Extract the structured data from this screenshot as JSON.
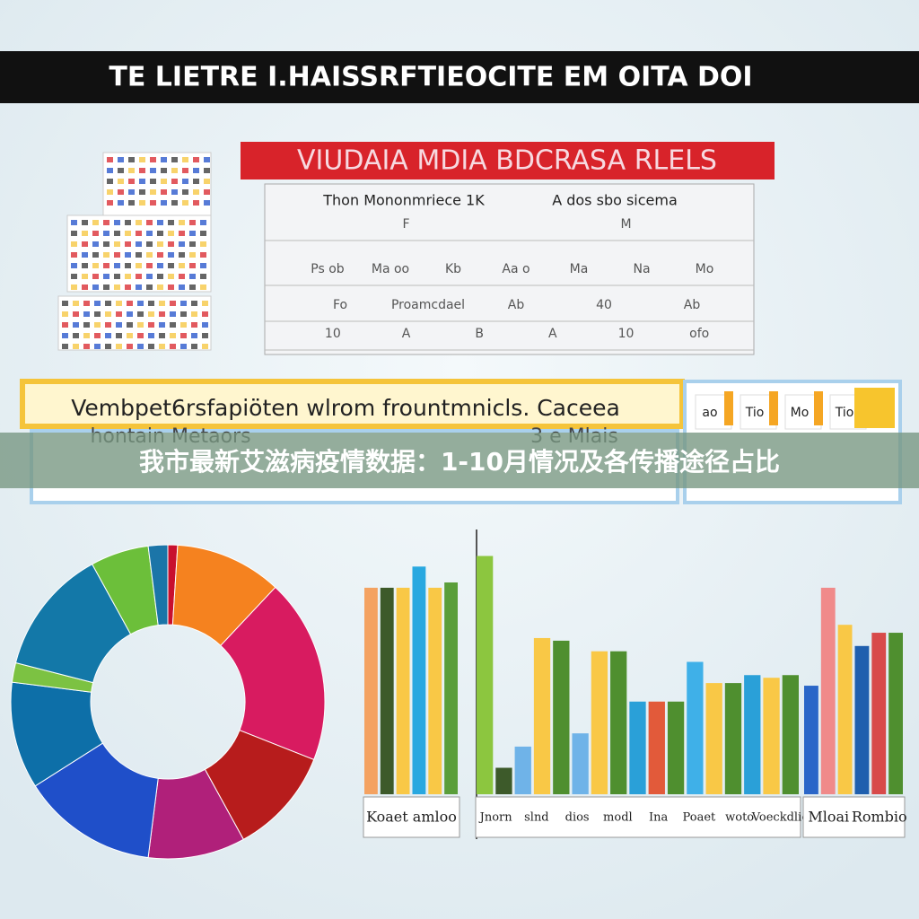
{
  "header": {
    "title": "TE LIETRE I.HAISSRFTIEOCITE EM OITA DOI"
  },
  "table": {
    "banner": "VIUDAIA MDIA BDCRASA RLELS",
    "headers": [
      "Thon Mononmriece 1K",
      "A dos sbo sicema"
    ],
    "rows": [
      [
        "F",
        "M"
      ],
      [
        "Ps ob",
        "Ma oo",
        "Kb",
        "Aa o",
        "Ma",
        "Na",
        "Mo"
      ],
      [
        "Fo",
        "Proamcdael",
        "Ab",
        "40",
        "Ab"
      ],
      [
        "10",
        "A",
        "B",
        "A",
        "10",
        "ofo"
      ]
    ]
  },
  "notice": {
    "text": "Vembpet6rsfapiöten wlrom frountmnicls. Caceea",
    "subtext": "hontain Metaors",
    "side": "3 e Mlais",
    "boxes": [
      "ao",
      "Tio",
      "Mo",
      "Tio"
    ]
  },
  "caption": "我市最新艾滋病疫情数据：1-10月情况及各传播途径占比",
  "donut": {
    "values": [
      1,
      11,
      19,
      11,
      10,
      14,
      11,
      2,
      13,
      6,
      2
    ],
    "colors": [
      "#c8102e",
      "#f5821f",
      "#d81b60",
      "#b71c1c",
      "#b0207a",
      "#1f4fc9",
      "#0d6fa8",
      "#7cc242",
      "#1378a8",
      "#6cbf3a",
      "#1b75a8"
    ]
  },
  "bars": {
    "groups": [
      {
        "values": [
          78,
          78,
          78,
          86,
          78,
          80
        ],
        "colors": [
          "#f4a261",
          "#3d5a2a",
          "#f9c846",
          "#29a8e0",
          "#f9c846",
          "#5a9e3a"
        ]
      },
      {
        "values": [
          90,
          10,
          18,
          59,
          58,
          23,
          54,
          54,
          35,
          35,
          35,
          50,
          42,
          42,
          45,
          44,
          45
        ],
        "colors": [
          "#8cc63f",
          "#3d5a2a",
          "#6fb3e8",
          "#f9c846",
          "#4f8f2f",
          "#6fb3e8",
          "#f9c846",
          "#4f8f2f",
          "#2aa0d8",
          "#e25a3a",
          "#4f8f2f",
          "#3fb0e8",
          "#f9c846",
          "#4f8f2f",
          "#2aa0d8",
          "#f9c846",
          "#4f8f2f"
        ]
      },
      {
        "values": [
          41,
          78,
          64,
          56,
          61,
          61
        ],
        "colors": [
          "#2a66c8",
          "#f08a8a",
          "#f9c846",
          "#1f5fae",
          "#d84a4a",
          "#4f8f2f"
        ]
      }
    ],
    "labels": [
      [
        "Koaet amloo"
      ],
      [
        "Jnorn",
        "slnd",
        "dios",
        "modl",
        "Ina",
        "Poaet",
        "woto",
        "Voeckdlio"
      ],
      [
        "Mloai",
        "Rombio"
      ]
    ]
  }
}
